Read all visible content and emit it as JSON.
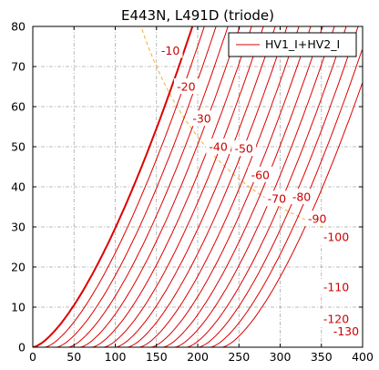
{
  "chart_data": {
    "type": "line",
    "title": "E443N, L491D (triode)",
    "xlabel": "",
    "ylabel": "",
    "xlim": [
      0,
      400
    ],
    "ylim": [
      0,
      80
    ],
    "x_ticks": [
      0,
      50,
      100,
      150,
      200,
      250,
      300,
      350,
      400
    ],
    "y_ticks": [
      0,
      10,
      20,
      30,
      40,
      50,
      60,
      70,
      80
    ],
    "grid": true,
    "legend": {
      "placement": "top-right",
      "entries": [
        "HV1_I+HV2_I"
      ]
    },
    "line_color": "#dd0000",
    "dissipation_color": "#f0b030",
    "series": [
      {
        "label": "",
        "x0": 0,
        "k": 0.0297
      },
      {
        "label": "-10",
        "x0": 14.4,
        "k": 0.0297
      },
      {
        "label": "-20",
        "x0": 28.7,
        "k": 0.0297
      },
      {
        "label": "-30",
        "x0": 43.1,
        "k": 0.0297
      },
      {
        "label": "-40",
        "x0": 57.4,
        "k": 0.0297
      },
      {
        "label": "-50",
        "x0": 71.8,
        "k": 0.0297
      },
      {
        "label": "-60",
        "x0": 86.1,
        "k": 0.0297
      },
      {
        "label": "-70",
        "x0": 100.5,
        "k": 0.0297
      },
      {
        "label": "-80",
        "x0": 114.8,
        "k": 0.0297
      },
      {
        "label": "-90",
        "x0": 129.2,
        "k": 0.0297
      },
      {
        "label": "-100",
        "x0": 143.5,
        "k": 0.0297
      },
      {
        "label": "",
        "x0": 157.9,
        "k": 0.0297
      },
      {
        "label": "-110",
        "x0": 172.2,
        "k": 0.0297
      },
      {
        "label": "",
        "x0": 186.6,
        "k": 0.0297
      },
      {
        "label": "-120",
        "x0": 200.9,
        "k": 0.0297
      },
      {
        "label": "",
        "x0": 215.3,
        "k": 0.0297
      },
      {
        "label": "-130",
        "x0": 229.6,
        "k": 0.0297
      }
    ],
    "label_positions": [
      {
        "label": "-10",
        "x": 167,
        "y": 74
      },
      {
        "label": "-20",
        "x": 186,
        "y": 65
      },
      {
        "label": "-30",
        "x": 205,
        "y": 57
      },
      {
        "label": "-40",
        "x": 225,
        "y": 50
      },
      {
        "label": "-50",
        "x": 256,
        "y": 49.5
      },
      {
        "label": "-60",
        "x": 276,
        "y": 43
      },
      {
        "label": "-70",
        "x": 296,
        "y": 37
      },
      {
        "label": "-80",
        "x": 326,
        "y": 37.5
      },
      {
        "label": "-90",
        "x": 345,
        "y": 32
      },
      {
        "label": "-100",
        "x": 368,
        "y": 27.5
      },
      {
        "label": "-110",
        "x": 368,
        "y": 15
      },
      {
        "label": "-120",
        "x": 368,
        "y": 7
      },
      {
        "label": "-130",
        "x": 380,
        "y": 4
      }
    ],
    "dissipation_curve": {
      "power_mw": 10500,
      "x_from": 130,
      "x_to": 370
    }
  }
}
